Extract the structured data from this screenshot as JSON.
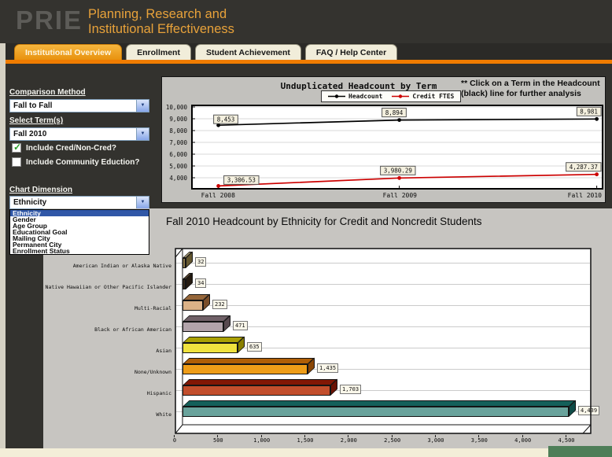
{
  "brand": {
    "logo": "PRIE",
    "title_line1": "Planning, Research and",
    "title_line2": "Institutional Effectiveness"
  },
  "tabs": [
    {
      "label": "Institutional Overview",
      "active": true
    },
    {
      "label": "Enrollment",
      "active": false
    },
    {
      "label": "Student Achievement",
      "active": false
    },
    {
      "label": "FAQ / Help Center",
      "active": false
    }
  ],
  "sidebar": {
    "comparison_method_label": "Comparison Method",
    "comparison_method_value": "Fall to Fall",
    "select_terms_label": "Select Term(s)",
    "select_terms_value": "Fall 2010",
    "checkbox_cred": {
      "label": "Include Cred/Non-Cred?",
      "checked": true
    },
    "checkbox_community": {
      "label": "Include Community Eduction?",
      "checked": false
    },
    "chart_dimension_label": "Chart Dimension",
    "chart_dimension_value": "Ethnicity",
    "dropdown_options": [
      "Ethnicity",
      "Gender",
      "Age Group",
      "Educational Goal",
      "Mailing City",
      "Permanent City",
      "Enrollment Status"
    ],
    "dropdown_selected_index": 0
  },
  "top_chart": {
    "note": "** Click on a Term in the Headcount (black) line for further analysis"
  },
  "colors": {
    "accent_orange": "#f07c00",
    "highlight_blue": "#3057a7",
    "headcount_line": "#000000",
    "credit_ftes_line": "#cc0000"
  },
  "chart_data": [
    {
      "type": "line",
      "title": "Unduplicated Headcount by Term",
      "x": [
        "Fall 2008",
        "Fall 2009",
        "Fall 2010"
      ],
      "series": [
        {
          "name": "Headcount",
          "color": "#000000",
          "values": [
            8453,
            8894,
            8981
          ],
          "labels": [
            "8,453",
            "8,894",
            "8,981"
          ]
        },
        {
          "name": "Credit FTES",
          "color": "#cc0000",
          "values": [
            3306.53,
            3980.29,
            4287.37
          ],
          "labels": [
            "3,306.53",
            "3,980.29",
            "4,287.37"
          ]
        }
      ],
      "ylim": [
        3000,
        10200
      ],
      "yticks": [
        4000,
        5000,
        6000,
        7000,
        8000,
        9000,
        10000
      ],
      "ytick_labels": [
        "4,000",
        "5,000",
        "6,000",
        "7,000",
        "8,000",
        "9,000",
        "10,000"
      ],
      "legend_position": "top",
      "grid": true
    },
    {
      "type": "bar",
      "orientation": "horizontal",
      "title": "Fall 2010 Headcount by Ethnicity for Credit and Noncredit Students",
      "categories": [
        "American Indian or Alaska Native",
        "Native Hawaiian or Other Pacific Islander",
        "Multi-Racial",
        "Black or African American",
        "Asian",
        "None/Unknown",
        "Hispanic",
        "White"
      ],
      "values": [
        32,
        34,
        232,
        471,
        635,
        1435,
        1703,
        4439
      ],
      "value_labels": [
        "32",
        "34",
        "232",
        "471",
        "635",
        "1,435",
        "1,703",
        "4,439"
      ],
      "bar_colors": [
        {
          "front": "#8e7c4f",
          "top": "#b2a47c",
          "side": "#645730"
        },
        {
          "front": "#362a1c",
          "top": "#5a4630",
          "side": "#241a10"
        },
        {
          "front": "#dcb287",
          "top": "#95663a",
          "side": "#7a4e2a"
        },
        {
          "front": "#b2a3aa",
          "top": "#6f6067",
          "side": "#57494f"
        },
        {
          "front": "#f0e23e",
          "top": "#aaa004",
          "side": "#8a8000"
        },
        {
          "front": "#ef9d18",
          "top": "#b05e06",
          "side": "#8a4604"
        },
        {
          "front": "#c24e2c",
          "top": "#811705",
          "side": "#6a1204"
        },
        {
          "front": "#69a39c",
          "top": "#14605a",
          "side": "#0f4c48"
        }
      ],
      "xlim": [
        0,
        4500
      ],
      "xticks": [
        0,
        500,
        1000,
        1500,
        2000,
        2500,
        3000,
        3500,
        4000,
        4500
      ],
      "xtick_labels": [
        "0",
        "500",
        "1,000",
        "1,500",
        "2,000",
        "2,500",
        "3,000",
        "3,500",
        "4,000",
        "4,500"
      ],
      "grid": true
    }
  ]
}
